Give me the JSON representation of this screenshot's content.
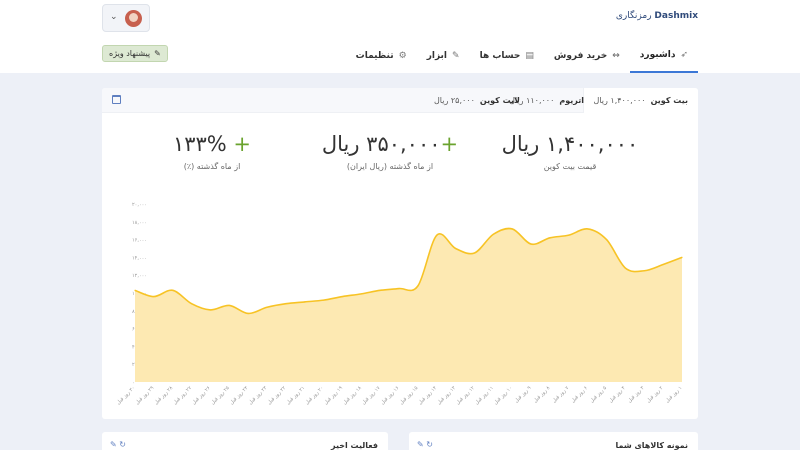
{
  "header": {
    "brand_bold": "Dashmix",
    "brand_suffix": " رمزنگاری",
    "special_label": "پیشنهاد ویژه",
    "user_caret": "⌄"
  },
  "nav": {
    "items": [
      {
        "label": "داشبورد",
        "icon": "rocket-icon",
        "glyph": "➶",
        "active": true
      },
      {
        "label": "خرید فروش",
        "icon": "exchange-icon",
        "glyph": "↔",
        "active": false
      },
      {
        "label": "حساب ها",
        "icon": "wallet-icon",
        "glyph": "▤",
        "active": false
      },
      {
        "label": "ابزار",
        "icon": "wrench-icon",
        "glyph": "✎",
        "active": false
      },
      {
        "label": "تنظیمات",
        "icon": "gear-icon",
        "glyph": "⚙",
        "active": false
      }
    ]
  },
  "tabs": [
    {
      "name": "بیت کوین",
      "price": "۱,۴۰۰,۰۰۰ ریال"
    },
    {
      "name": "اتریوم",
      "price": "۱۱۰,۰۰۰ ریال"
    },
    {
      "name": "لایت کوین",
      "price": "۲۵,۰۰۰ ریال"
    }
  ],
  "stats": [
    {
      "value": "۱,۴۰۰,۰۰۰ ریال",
      "plus": "",
      "label": "قیمت بیت کوین"
    },
    {
      "value": "۳۵۰,۰۰۰ ریال",
      "plus": "+",
      "label": "از ماه گذشته (ریال ایران)"
    },
    {
      "value": "۱۳۳%",
      "plus": "+ ",
      "label": "از ماه گذشته (٪)"
    }
  ],
  "chart_data": {
    "type": "area",
    "series_color": "#f7c325",
    "fill_color": "#fde9b2",
    "yticks": [
      "۰",
      "۲,۰۰۰",
      "۴,۰۰۰",
      "۶,۰۰۰",
      "۸,۰۰۰",
      "۱۰,۰۰۰",
      "۱۲,۰۰۰",
      "۱۴,۰۰۰",
      "۱۶,۰۰۰",
      "۱۸,۰۰۰",
      "۲۰,۰۰۰"
    ],
    "ylim": [
      0,
      20000
    ],
    "x_labels": [
      "۱ روز قبل",
      "۲ روز قبل",
      "۳ روز قبل",
      "۴ روز قبل",
      "۵ روز قبل",
      "۶ روز قبل",
      "۷ روز قبل",
      "۸ روز قبل",
      "۹ روز قبل",
      "۱۰ روز قبل",
      "۱۱ روز قبل",
      "۱۲ روز قبل",
      "۱۳ روز قبل",
      "۱۴ روز قبل",
      "۱۵ روز قبل",
      "۱۶ روز قبل",
      "۱۷ روز قبل",
      "۱۸ روز قبل",
      "۱۹ روز قبل",
      "۲۰ روز قبل",
      "۲۱ روز قبل",
      "۲۲ روز قبل",
      "۲۳ روز قبل",
      "۲۴ روز قبل",
      "۲۵ روز قبل",
      "۲۶ روز قبل",
      "۲۷ روز قبل",
      "۲۸ روز قبل",
      "۲۹ روز قبل",
      "۳۰ روز قبل"
    ],
    "values": [
      14000,
      13200,
      12500,
      12800,
      16000,
      17200,
      16500,
      16200,
      15500,
      17200,
      16600,
      14500,
      15000,
      16500,
      10800,
      10500,
      10300,
      9900,
      9600,
      9200,
      9000,
      8800,
      8400,
      7700,
      8600,
      8100,
      8800,
      10300,
      9600,
      10300
    ]
  },
  "panels": [
    {
      "title": "فعالیت اخیر",
      "tools": "↻  ✎"
    },
    {
      "title": "نمونه کالاهای شما",
      "tools": "↻  ✎"
    }
  ]
}
